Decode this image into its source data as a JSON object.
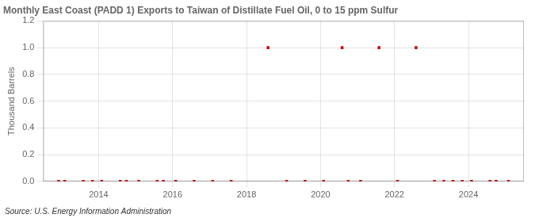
{
  "chart_data": {
    "type": "scatter",
    "title": "Monthly East Coast (PADD 1) Exports to Taiwan of Distillate Fuel Oil, 0 to 15 ppm Sulfur",
    "ylabel": "Thousand Barrels",
    "annotations": [
      "Source: U.S. Energy Information Administration"
    ],
    "color": "#cc0000",
    "marker": "square",
    "grid": true,
    "xlim": [
      2012.5,
      2025.5
    ],
    "xticks": [
      2014,
      2016,
      2018,
      2020,
      2022,
      2024
    ],
    "ylim": [
      0,
      1.2
    ],
    "yticks": [
      {
        "value": 0,
        "label": "0.0"
      },
      0.2,
      0.4,
      0.6,
      0.8,
      {
        "value": 1,
        "label": "1.0"
      },
      1.2
    ],
    "x": [
      2012.917,
      2013.083,
      2013.583,
      2013.833,
      2014.083,
      2014.583,
      2014.75,
      2015.083,
      2015.583,
      2015.75,
      2016.083,
      2016.583,
      2017.083,
      2017.583,
      2018.583,
      2019.083,
      2019.583,
      2020.083,
      2020.583,
      2020.75,
      2021.083,
      2021.583,
      2022.083,
      2022.583,
      2023.083,
      2023.333,
      2023.583,
      2023.833,
      2024.083,
      2024.583,
      2024.75,
      2025.083
    ],
    "values": [
      0.0,
      0.0,
      0.0,
      0.0,
      0.0,
      0.0,
      0.0,
      0.0,
      0.0,
      0.0,
      0.0,
      0.0,
      0.0,
      0.0,
      1.0,
      0.0,
      0.0,
      0.0,
      1.0,
      0.0,
      0.0,
      1.0,
      0.0,
      1.0,
      0.0,
      0.0,
      0.0,
      0.0,
      0.0,
      0.0,
      0.0,
      0.0
    ]
  }
}
